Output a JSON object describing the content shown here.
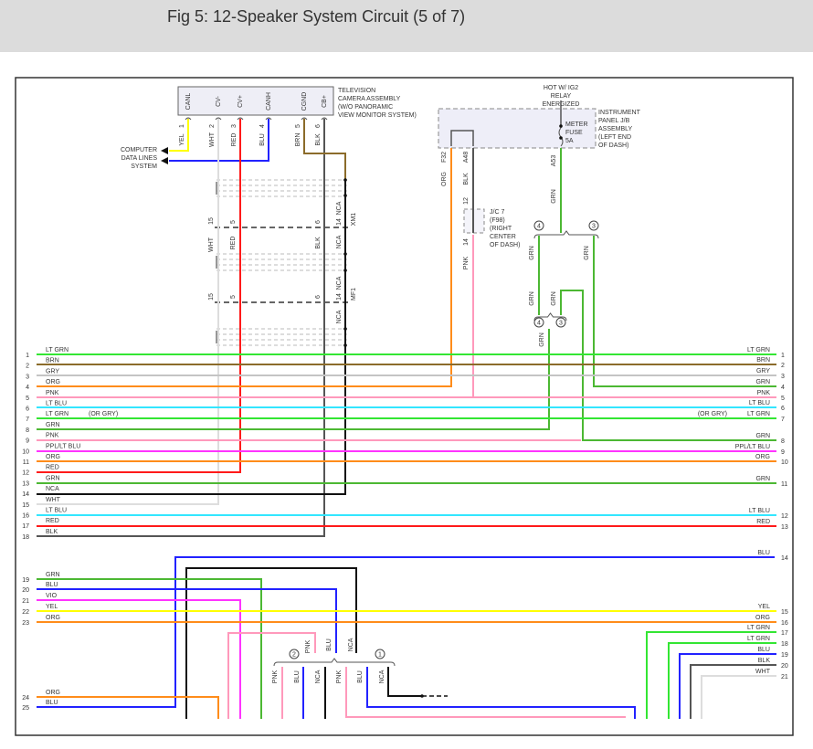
{
  "header": {
    "title": "Fig 5: 12-Speaker System Circuit (5 of 7)"
  },
  "wire_colors": {
    "LT GRN": "#33e633",
    "BRN": "#8b6b2a",
    "GRY": "#c4c4c4",
    "ORG": "#ff8c1a",
    "PNK": "#ff99bb",
    "LT BLU": "#33e6ff",
    "GRN": "#4cb833",
    "PPL/LT BLU": "#ff33ff",
    "RED": "#ff1a1a",
    "NCA": "#111111",
    "WHT": "#dddddd",
    "BLK": "#555555",
    "BLU": "#2222ff",
    "VIO": "#ff33ff",
    "YEL": "#ffff00"
  },
  "components": {
    "tv_camera": [
      "TELEVISION",
      "CAMERA ASSEMBLY",
      "(W/O PANORAMIC",
      "VIEW MONITOR SYSTEM)"
    ],
    "tv_pins": [
      {
        "name": "CANL",
        "num": "1",
        "wire": "YEL"
      },
      {
        "name": "CV-",
        "num": "2",
        "wire": "WHT"
      },
      {
        "name": "CV+",
        "num": "3",
        "wire": "RED"
      },
      {
        "name": "CANH",
        "num": "4",
        "wire": "BLU"
      },
      {
        "name": "CGND",
        "num": "5",
        "wire": "BRN"
      },
      {
        "name": "CB+",
        "num": "6",
        "wire": "BLK"
      }
    ],
    "computer_data": [
      "COMPUTER",
      "DATA LINES",
      "SYSTEM"
    ],
    "hot_label": [
      "HOT W/ IG2",
      "RELAY",
      "ENERGIZED"
    ],
    "instrument_panel": [
      "INSTRUMENT",
      "PANEL J/B",
      "ASSEMBLY",
      "(LEFT END",
      "OF DASH)"
    ],
    "fuse": [
      "METER",
      "FUSE",
      "5A"
    ],
    "jc7": [
      "J/C 7",
      "(F98)",
      "(RIGHT",
      "CENTER",
      "OF DASH)"
    ],
    "connector_xm1": "XM1",
    "connector_mf1": "MF1",
    "circles": [
      "4",
      "3",
      "4",
      "3",
      "2",
      "1"
    ]
  },
  "vertical_labels": [
    "WHT",
    "RED",
    "BLK",
    "NCA",
    "NCA",
    "15",
    "5",
    "6",
    "14",
    "15",
    "5",
    "6",
    "14",
    "NCA",
    "NCA",
    "F32",
    "ORG",
    "A48",
    "BLK",
    "12",
    "14",
    "PNK",
    "A53",
    "GRN",
    "GRN",
    "GRN",
    "GRN",
    "GRN",
    "GRN",
    "PNK",
    "BLU",
    "NCA",
    "PNK",
    "BLU",
    "NCA",
    "PNK",
    "BLU",
    "NCA"
  ],
  "left_rows": [
    {
      "num": "1",
      "label": "LT GRN"
    },
    {
      "num": "2",
      "label": "BRN"
    },
    {
      "num": "3",
      "label": "GRY"
    },
    {
      "num": "4",
      "label": "ORG"
    },
    {
      "num": "5",
      "label": "PNK"
    },
    {
      "num": "6",
      "label": "LT BLU"
    },
    {
      "num": "7",
      "label": "LT GRN",
      "note": "(OR GRY)"
    },
    {
      "num": "8",
      "label": "GRN"
    },
    {
      "num": "9",
      "label": "PNK"
    },
    {
      "num": "10",
      "label": "PPL/LT BLU"
    },
    {
      "num": "11",
      "label": "ORG"
    },
    {
      "num": "12",
      "label": "RED"
    },
    {
      "num": "13",
      "label": "GRN"
    },
    {
      "num": "14",
      "label": "NCA"
    },
    {
      "num": "15",
      "label": "WHT"
    },
    {
      "num": "16",
      "label": "LT BLU"
    },
    {
      "num": "17",
      "label": "RED"
    },
    {
      "num": "18",
      "label": "BLK"
    },
    {
      "num": "19",
      "label": "GRN"
    },
    {
      "num": "20",
      "label": "BLU"
    },
    {
      "num": "21",
      "label": "VIO"
    },
    {
      "num": "22",
      "label": "YEL"
    },
    {
      "num": "23",
      "label": "ORG"
    },
    {
      "num": "24",
      "label": "ORG"
    },
    {
      "num": "25",
      "label": "BLU"
    }
  ],
  "right_rows": [
    {
      "num": "1",
      "label": "LT GRN"
    },
    {
      "num": "2",
      "label": "BRN"
    },
    {
      "num": "3",
      "label": "GRY"
    },
    {
      "num": "4",
      "label": "GRN"
    },
    {
      "num": "5",
      "label": "PNK"
    },
    {
      "num": "6",
      "label": "LT BLU"
    },
    {
      "num": "7",
      "label": "LT GRN",
      "note": "(OR GRY)"
    },
    {
      "num": "8",
      "label": "GRN"
    },
    {
      "num": "9",
      "label": "PPL/LT BLU"
    },
    {
      "num": "10",
      "label": "ORG"
    },
    {
      "num": "11",
      "label": "GRN"
    },
    {
      "num": "12",
      "label": "LT BLU"
    },
    {
      "num": "13",
      "label": "RED"
    },
    {
      "num": "14",
      "label": "BLU"
    },
    {
      "num": "15",
      "label": "YEL"
    },
    {
      "num": "16",
      "label": "ORG"
    },
    {
      "num": "17",
      "label": "LT GRN"
    },
    {
      "num": "18",
      "label": "LT GRN"
    },
    {
      "num": "19",
      "label": "BLU"
    },
    {
      "num": "20",
      "label": "BLK"
    },
    {
      "num": "21",
      "label": "WHT"
    }
  ]
}
